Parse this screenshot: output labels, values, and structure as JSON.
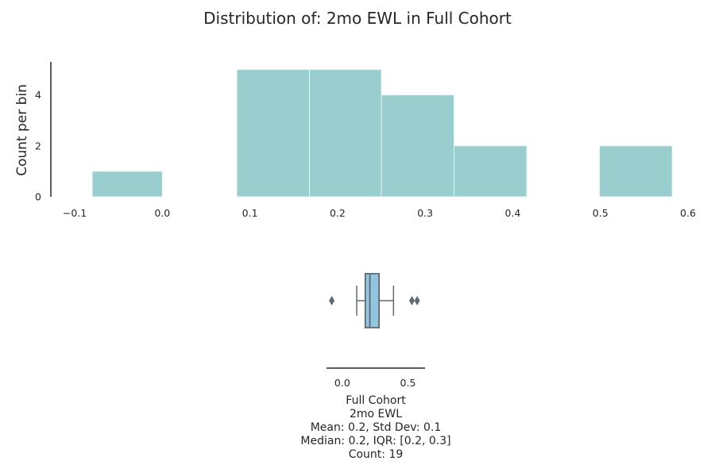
{
  "chart_data": [
    {
      "type": "bar",
      "subtype": "histogram",
      "title": "Distribution of: 2mo EWL in Full Cohort",
      "xlabel": "",
      "ylabel": "Count per bin",
      "xlim": [
        -0.12,
        0.6
      ],
      "ylim": [
        0,
        5.3
      ],
      "x_ticks": [
        "−0.1",
        "0.0",
        "0.1",
        "0.2",
        "0.3",
        "0.4",
        "0.5",
        "0.6"
      ],
      "x_tick_values": [
        -0.1,
        0.0,
        0.1,
        0.2,
        0.3,
        0.4,
        0.5,
        0.6
      ],
      "y_ticks": [
        "0",
        "2",
        "4"
      ],
      "y_tick_values": [
        0,
        2,
        4
      ],
      "bins": [
        {
          "x0": -0.08,
          "x1": 0.0,
          "count": 1
        },
        {
          "x0": 0.0,
          "x1": 0.085,
          "count": 0
        },
        {
          "x0": 0.085,
          "x1": 0.168,
          "count": 5
        },
        {
          "x0": 0.168,
          "x1": 0.25,
          "count": 5
        },
        {
          "x0": 0.25,
          "x1": 0.333,
          "count": 4
        },
        {
          "x0": 0.333,
          "x1": 0.416,
          "count": 2
        },
        {
          "x0": 0.416,
          "x1": 0.499,
          "count": 0
        },
        {
          "x0": 0.499,
          "x1": 0.582,
          "count": 2
        }
      ],
      "colors": {
        "bar": "#9acdcd",
        "bar_edge": "#e8f4f4",
        "text": "#262626",
        "axis": "#262626"
      },
      "grid": false
    },
    {
      "type": "box",
      "orientation": "horizontal",
      "xlim": [
        -0.12,
        0.63
      ],
      "x_ticks": [
        "0.0",
        "0.5"
      ],
      "x_tick_values": [
        0.0,
        0.5
      ],
      "box": {
        "whisker_low": 0.11,
        "q1": 0.175,
        "median": 0.21,
        "q3": 0.28,
        "whisker_high": 0.39,
        "outliers": [
          -0.08,
          0.53,
          0.57
        ]
      },
      "caption": [
        "Full Cohort",
        "2mo EWL",
        "Mean: 0.2, Std Dev: 0.1",
        "Median: 0.2, IQR: [0.2, 0.3]",
        "Count: 19"
      ],
      "colors": {
        "box": "#92c6df",
        "line": "#5f6b73",
        "outlier": "#5f6b73",
        "axis": "#262626"
      }
    }
  ]
}
